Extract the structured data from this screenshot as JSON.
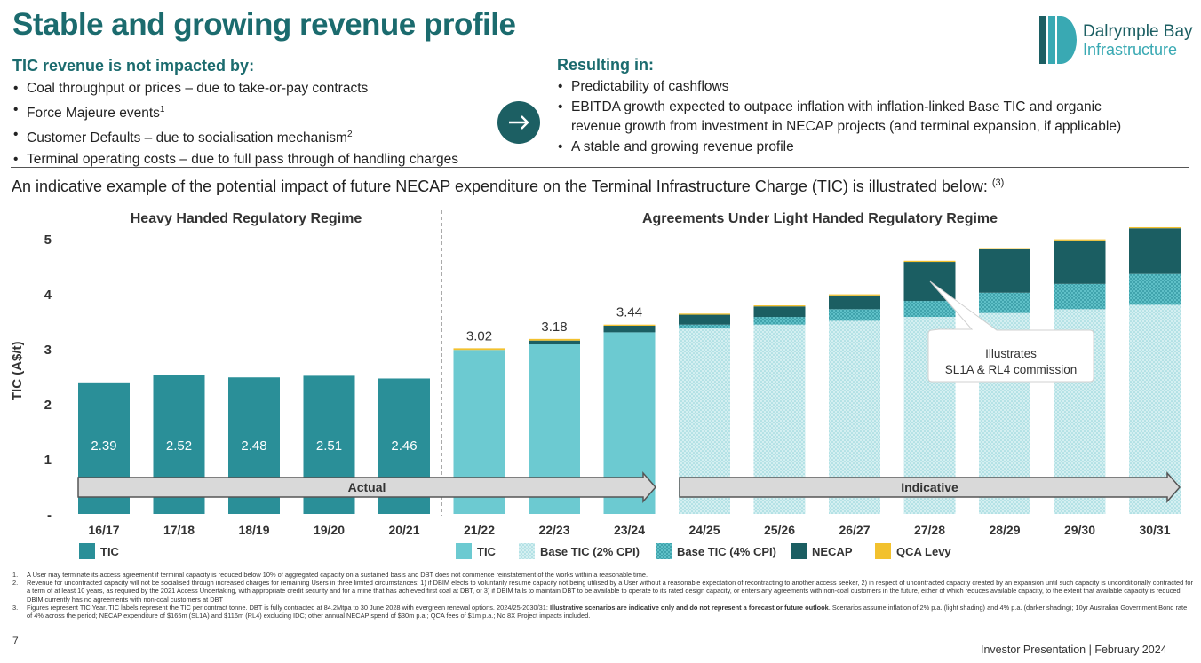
{
  "header": {
    "title": "Stable and growing revenue profile",
    "logo_line1": "Dalrymple Bay",
    "logo_line2": "Infrastructure"
  },
  "left_panel": {
    "heading": "TIC revenue is not impacted by:",
    "bullets": [
      {
        "text": "Coal throughput or prices – due to take-or-pay contracts",
        "sup": ""
      },
      {
        "text": "Force Majeure events",
        "sup": "1"
      },
      {
        "text": "Customer Defaults – due to socialisation mechanism",
        "sup": "2"
      },
      {
        "text": "Terminal operating costs – due to full pass through of handling charges",
        "sup": ""
      }
    ]
  },
  "right_panel": {
    "heading": "Resulting in:",
    "bullet1": "Predictability of cashflows",
    "bullet2_line1": "EBITDA growth expected to outpace inflation with inflation-linked Base TIC  and organic",
    "bullet2_line2": "revenue growth from investment in NECAP projects (and terminal expansion, if applicable)",
    "bullet3": "A stable and growing revenue profile"
  },
  "intro": {
    "text": "An indicative example of the potential impact of future NECAP expenditure on the Terminal Infrastructure Charge (TIC) is illustrated below: ",
    "sup": "(3)"
  },
  "chart_data": {
    "type": "bar",
    "stacked": true,
    "ylabel": "TIC (A$/t)",
    "ylim": [
      0,
      5.4
    ],
    "yticks": [
      "-",
      "1",
      "2",
      "3",
      "4",
      "5"
    ],
    "categories": [
      "16/17",
      "17/18",
      "18/19",
      "19/20",
      "20/21",
      "21/22",
      "22/23",
      "23/24",
      "24/25",
      "25/26",
      "26/27",
      "27/28",
      "28/29",
      "29/30",
      "30/31"
    ],
    "section_titles": [
      "Heavy Handed Regulatory Regime",
      "Agreements Under Light Handed Regulatory Regime"
    ],
    "period_arrows": [
      "Actual",
      "Indicative"
    ],
    "series": [
      {
        "name": "TIC",
        "color": "#2a8f98",
        "values": [
          2.39,
          2.52,
          2.48,
          2.51,
          2.46,
          null,
          null,
          null,
          null,
          null,
          null,
          null,
          null,
          null,
          null
        ]
      },
      {
        "name": "TIC",
        "color": "#6ccad1",
        "values": [
          null,
          null,
          null,
          null,
          null,
          2.98,
          3.08,
          3.3,
          null,
          null,
          null,
          null,
          null,
          null,
          null
        ]
      },
      {
        "name": "Base TIC (2% CPI)",
        "color": "#d8f0f2",
        "values": [
          null,
          null,
          null,
          null,
          null,
          null,
          null,
          null,
          3.37,
          3.44,
          3.51,
          3.58,
          3.65,
          3.72,
          3.8
        ]
      },
      {
        "name": "Base TIC (4% CPI)",
        "color": "#5fc0c7",
        "values": [
          null,
          null,
          null,
          null,
          null,
          null,
          null,
          null,
          0.07,
          0.14,
          0.21,
          0.29,
          0.37,
          0.46,
          0.56
        ]
      },
      {
        "name": "NECAP",
        "color": "#1b5e62",
        "values": [
          null,
          null,
          null,
          null,
          null,
          0.0,
          0.07,
          0.12,
          0.18,
          0.19,
          0.25,
          0.71,
          0.79,
          0.79,
          0.83
        ]
      },
      {
        "name": "QCA Levy",
        "color": "#f2c12e",
        "values": [
          null,
          null,
          null,
          null,
          null,
          0.03,
          0.03,
          0.02,
          0.02,
          0.02,
          0.02,
          0.02,
          0.02,
          0.02,
          0.02
        ]
      }
    ],
    "bar_labels": [
      "2.39",
      "2.52",
      "2.48",
      "2.51",
      "2.46",
      "3.02",
      "3.18",
      "3.44"
    ],
    "annotation_line1": "Illustrates",
    "annotation_line2": "SL1A & RL4 commission",
    "legend": [
      "TIC",
      "TIC",
      "Base TIC (2% CPI)",
      "Base TIC (4% CPI)",
      "NECAP",
      "QCA Levy"
    ]
  },
  "footnotes": [
    {
      "num": "1.",
      "text": "A User may terminate its access agreement if terminal capacity is reduced below 10% of aggregated capacity on a sustained basis and DBT does not commence reinstatement of the works within a reasonable time."
    },
    {
      "num": "2.",
      "text": "Revenue for uncontracted capacity will not be socialised through increased charges for remaining Users in three limited circumstances: 1) if DBIM elects to voluntarily resume capacity not being utilised by a User without a reasonable expectation of recontracting to another access seeker, 2) in respect of uncontracted capacity created by an expansion until such capacity is unconditionally contracted for a term of at least 10 years, as required by the 2021 Access Undertaking, with appropriate credit security and for a mine that has achieved first coal at DBT, or 3) if DBIM fails to maintain DBT to be available to operate to its rated design capacity, or enters any agreements with non-coal customers in the future, either of which reduces available capacity, to the extent that available capacity is reduced. DBIM currently has no agreements with non-coal customers at DBT"
    },
    {
      "num": "3.",
      "text_a": "Figures represent TIC Year. TIC labels represent the TIC per contract tonne. DBT is fully contracted at 84.2Mtpa to 30 June 2028 with evergreen renewal options. 2024/25-2030/31: ",
      "text_bold": "Illustrative scenarios are indicative only and do not represent a forecast or future outlook",
      "text_b": ". Scenarios assume inflation of 2% p.a. (light shading) and 4% p.a. (darker shading); 10yr Australian Government Bond rate of 4% across the period; NECAP expenditure of $165m (SL1A) and $116m (RL4) excluding IDC; other annual NECAP spend of $30m p.a.; QCA fees of $1m p.a.; No 8X Project impacts included."
    }
  ],
  "footer": {
    "page_number": "7",
    "right_text": "Investor Presentation  |  February 2024"
  }
}
